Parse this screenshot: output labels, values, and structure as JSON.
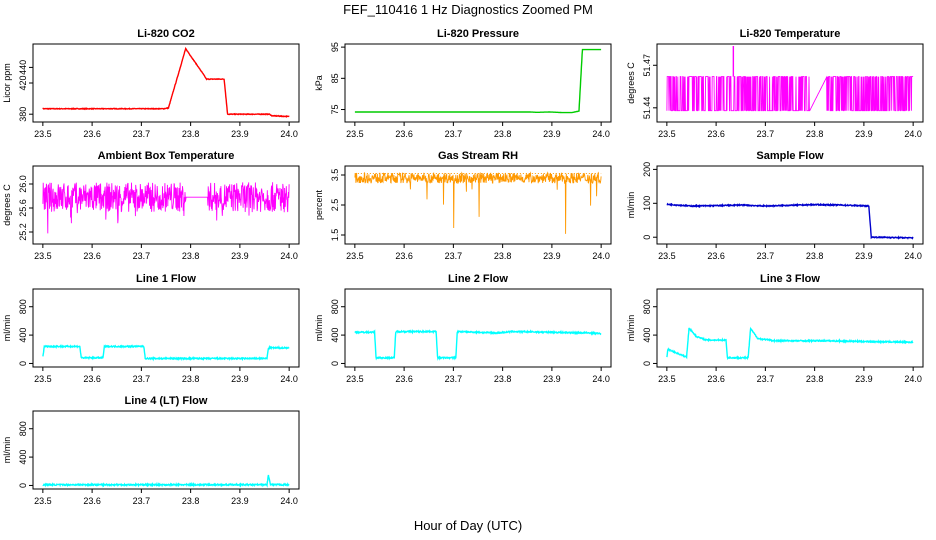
{
  "figure": {
    "title": "FEF_110416  1 Hz Diagnostics Zoomed PM",
    "xlabel": "Hour of Day (UTC)"
  },
  "chart_data": [
    {
      "type": "line",
      "title": "Li-820 CO2",
      "ylabel": "Licor ppm",
      "color": "#ff0000",
      "xlim": [
        23.48,
        24.02
      ],
      "ylim": [
        370,
        470
      ],
      "xticks": [
        "23.5",
        "23.6",
        "23.7",
        "23.8",
        "23.9",
        "24.0"
      ],
      "yticks": [
        "380",
        "420",
        "440"
      ],
      "series": [
        {
          "x": [
            23.5,
            23.745,
            23.755,
            23.79,
            23.825,
            23.832,
            23.868,
            23.875,
            23.96,
            23.965,
            24.0
          ],
          "y": [
            387,
            387,
            388,
            464,
            432,
            425,
            425,
            380,
            380,
            378,
            377
          ]
        }
      ]
    },
    {
      "type": "line",
      "title": "Li-820 Pressure",
      "ylabel": "kPa",
      "color": "#00cc00",
      "xlim": [
        23.48,
        24.02
      ],
      "ylim": [
        71,
        96
      ],
      "xticks": [
        "23.5",
        "23.6",
        "23.7",
        "23.8",
        "23.9",
        "24.0"
      ],
      "yticks": [
        "75",
        "85",
        "95"
      ],
      "series": [
        {
          "x": [
            23.5,
            23.84,
            23.855,
            23.87,
            23.895,
            23.912,
            23.922,
            23.93,
            23.94,
            23.955,
            23.962,
            24.0
          ],
          "y": [
            74.2,
            74.2,
            74.2,
            74.1,
            74.2,
            74.1,
            74.0,
            74.0,
            74.0,
            74.5,
            94.2,
            94.2
          ]
        }
      ]
    },
    {
      "type": "line",
      "title": "Li-820 Temperature",
      "ylabel": "degrees C",
      "color": "#ff00ff",
      "xlim": [
        23.48,
        24.02
      ],
      "ylim": [
        51.43,
        51.485
      ],
      "xticks": [
        "23.5",
        "23.6",
        "23.7",
        "23.8",
        "23.9",
        "24.0"
      ],
      "yticks": [
        "51.44",
        "51.47"
      ],
      "series": [
        {
          "x": [
            23.5,
            23.79,
            23.82,
            24.0
          ],
          "y": [
            51.462,
            51.462,
            51.46,
            51.462
          ]
        }
      ]
    },
    {
      "type": "line",
      "title": "Ambient Box Temperature",
      "ylabel": "degrees C",
      "color": "#ff00ff",
      "xlim": [
        23.48,
        24.02
      ],
      "ylim": [
        25.0,
        26.3
      ],
      "xticks": [
        "23.5",
        "23.6",
        "23.7",
        "23.8",
        "23.9",
        "24.0"
      ],
      "yticks": [
        "25.2",
        "25.6",
        "26.0"
      ],
      "series": [
        {
          "x": [
            23.5,
            23.79,
            23.835,
            24.0
          ],
          "y": [
            25.78,
            25.78,
            25.78,
            25.78
          ]
        }
      ]
    },
    {
      "type": "line",
      "title": "Gas Stream RH",
      "ylabel": "percent",
      "color": "#ff9900",
      "xlim": [
        23.48,
        24.02
      ],
      "ylim": [
        1.2,
        3.8
      ],
      "xticks": [
        "23.5",
        "23.6",
        "23.7",
        "23.8",
        "23.9",
        "24.0"
      ],
      "yticks": [
        "1.5",
        "2.5",
        "3.5"
      ],
      "series": [
        {
          "x": [
            23.5,
            24.0
          ],
          "y": [
            3.4,
            3.4
          ]
        }
      ]
    },
    {
      "type": "line",
      "title": "Sample Flow",
      "ylabel": "ml/min",
      "color": "#0000cc",
      "xlim": [
        23.48,
        24.02
      ],
      "ylim": [
        -20,
        210
      ],
      "xticks": [
        "23.5",
        "23.6",
        "23.7",
        "23.8",
        "23.9",
        "24.0"
      ],
      "yticks": [
        "0",
        "100",
        "200"
      ],
      "series": [
        {
          "x": [
            23.5,
            23.55,
            23.6,
            23.65,
            23.7,
            23.75,
            23.8,
            23.85,
            23.91,
            23.915,
            23.925,
            24.0
          ],
          "y": [
            97,
            92,
            93,
            95,
            92,
            94,
            96,
            95,
            92,
            0,
            0,
            -2
          ]
        }
      ]
    },
    {
      "type": "line",
      "title": "Line 1 Flow",
      "ylabel": "ml/min",
      "color": "#00ffff",
      "xlim": [
        23.48,
        24.02
      ],
      "ylim": [
        -50,
        1050
      ],
      "xticks": [
        "23.5",
        "23.6",
        "23.7",
        "23.8",
        "23.9",
        "24.0"
      ],
      "yticks": [
        "0",
        "400",
        "800"
      ],
      "series": [
        {
          "x": [
            23.5,
            23.503,
            23.575,
            23.578,
            23.622,
            23.625,
            23.705,
            23.708,
            23.955,
            23.958,
            24.0
          ],
          "y": [
            100,
            240,
            240,
            80,
            80,
            240,
            240,
            70,
            70,
            220,
            220
          ]
        }
      ]
    },
    {
      "type": "line",
      "title": "Line 2 Flow",
      "ylabel": "ml/min",
      "color": "#00ffff",
      "xlim": [
        23.48,
        24.02
      ],
      "ylim": [
        -50,
        1050
      ],
      "xticks": [
        "23.5",
        "23.6",
        "23.7",
        "23.8",
        "23.9",
        "24.0"
      ],
      "yticks": [
        "0",
        "400",
        "800"
      ],
      "series": [
        {
          "x": [
            23.5,
            23.54,
            23.543,
            23.58,
            23.583,
            23.665,
            23.668,
            23.705,
            23.708,
            23.79,
            23.82,
            23.98,
            24.0
          ],
          "y": [
            440,
            440,
            80,
            80,
            450,
            450,
            80,
            80,
            450,
            430,
            450,
            430,
            420
          ]
        }
      ]
    },
    {
      "type": "line",
      "title": "Line 3 Flow",
      "ylabel": "ml/min",
      "color": "#00ffff",
      "xlim": [
        23.48,
        24.02
      ],
      "ylim": [
        -50,
        1050
      ],
      "xticks": [
        "23.5",
        "23.6",
        "23.7",
        "23.8",
        "23.9",
        "24.0"
      ],
      "yticks": [
        "0",
        "400",
        "800"
      ],
      "series": [
        {
          "x": [
            23.5,
            23.502,
            23.54,
            23.545,
            23.56,
            23.58,
            23.62,
            23.623,
            23.665,
            23.67,
            23.685,
            23.72,
            23.8,
            23.82,
            23.9,
            24.0
          ],
          "y": [
            90,
            200,
            90,
            500,
            380,
            330,
            330,
            80,
            80,
            490,
            350,
            320,
            320,
            320,
            310,
            300
          ]
        }
      ]
    },
    {
      "type": "line",
      "title": "Line 4 (LT) Flow",
      "ylabel": "ml/min",
      "color": "#00ffff",
      "xlim": [
        23.48,
        24.02
      ],
      "ylim": [
        -50,
        1050
      ],
      "xticks": [
        "23.5",
        "23.6",
        "23.7",
        "23.8",
        "23.9",
        "24.0"
      ],
      "yticks": [
        "0",
        "400",
        "800"
      ],
      "series": [
        {
          "x": [
            23.5,
            23.955,
            23.958,
            23.962,
            24.0
          ],
          "y": [
            10,
            10,
            150,
            10,
            10
          ]
        }
      ]
    }
  ]
}
